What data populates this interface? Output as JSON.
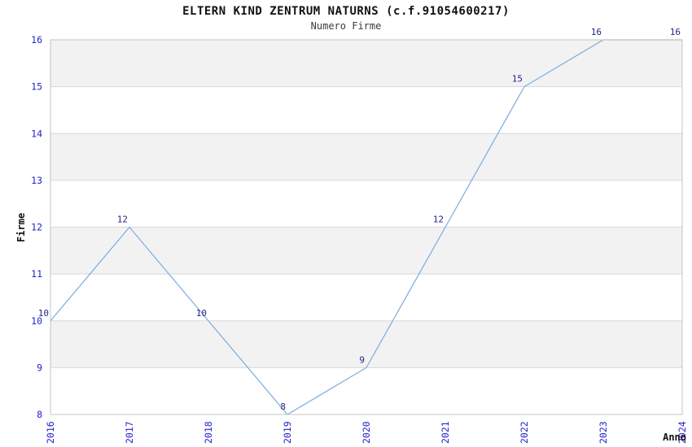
{
  "chart_data": {
    "type": "line",
    "title": "ELTERN KIND ZENTRUM NATURNS (c.f.91054600217)",
    "subtitle": "Numero Firme",
    "xlabel": "Anno",
    "ylabel": "Firme",
    "x": [
      "2016",
      "2017",
      "2018",
      "2019",
      "2020",
      "2021",
      "2022",
      "2023",
      "2024"
    ],
    "series": [
      {
        "name": "Numero Firme",
        "values": [
          10,
          12,
          10,
          8,
          9,
          12,
          15,
          16,
          16
        ]
      }
    ],
    "point_labels": [
      "10",
      "12",
      "10",
      "8",
      "9",
      "12",
      "15",
      "16",
      "16"
    ],
    "ylim": [
      8,
      16
    ],
    "yticks": [
      8,
      9,
      10,
      11,
      12,
      13,
      14,
      15,
      16
    ],
    "grid": "horizontal",
    "band_fill": "alternating",
    "legend_position": "none",
    "colors": {
      "line": "#7aabde",
      "tick_label": "#2323cd",
      "point_label": "#252585",
      "band": "#f2f2f2",
      "grid_line": "#d8d8d8",
      "plot_border": "#c4c4c4",
      "title": "#111111",
      "subtitle": "#3c3c3c",
      "axis_title": "#111111",
      "background": "#ffffff"
    }
  }
}
